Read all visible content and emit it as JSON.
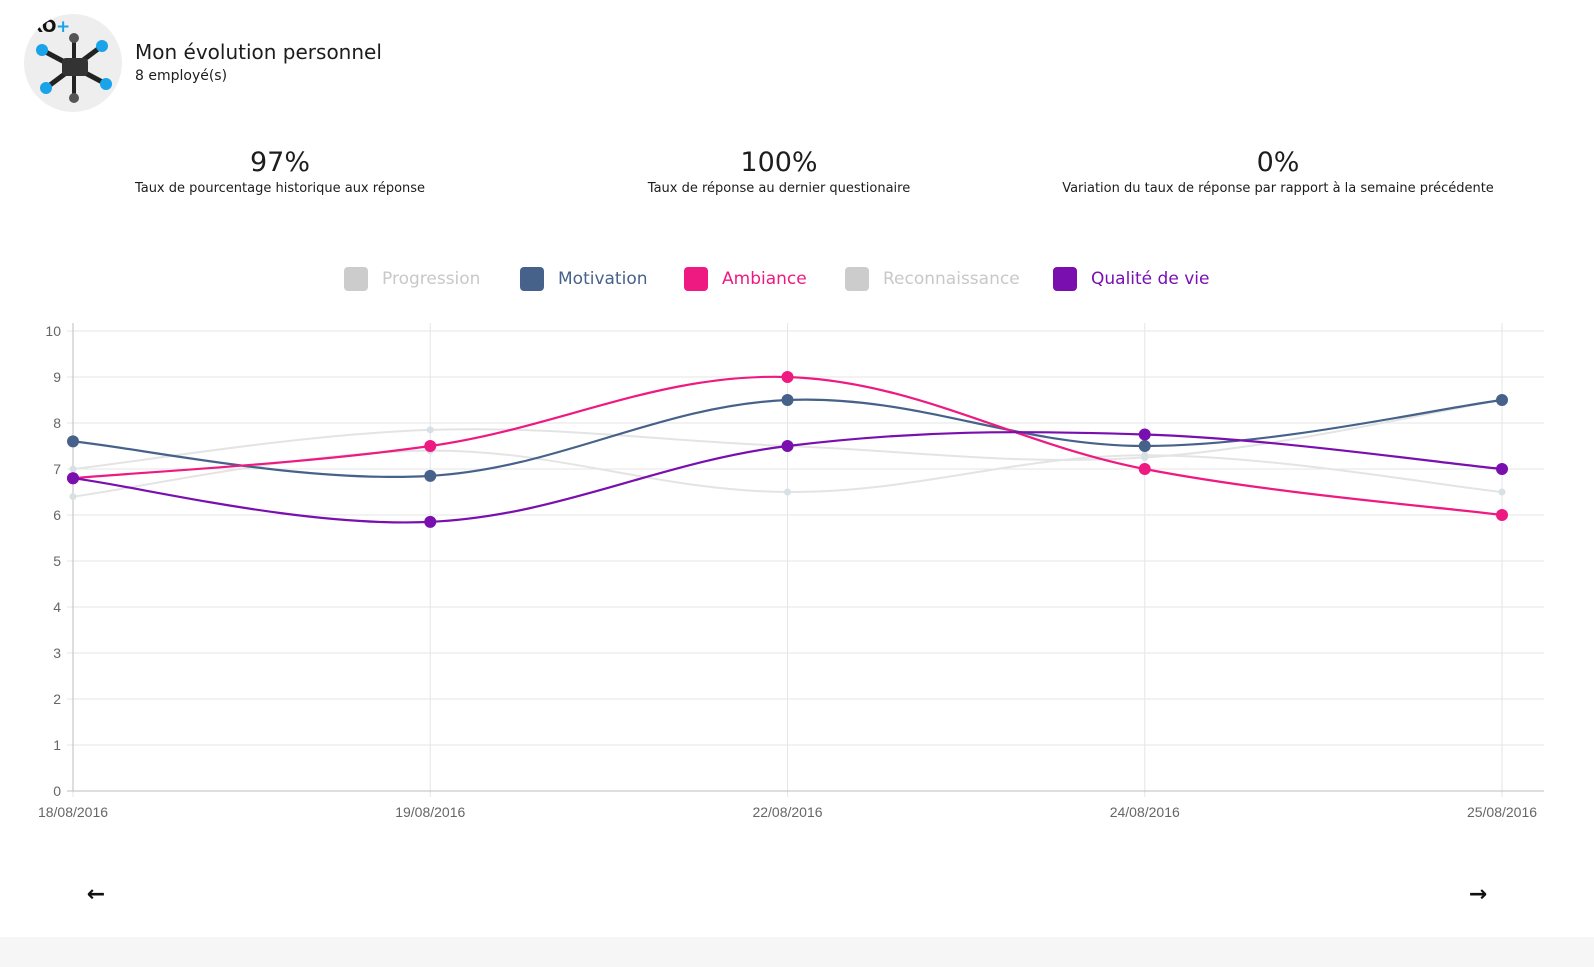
{
  "header": {
    "brand": "XO",
    "brand_plus": "+",
    "avatar_icon": "drone-icon",
    "title": "Mon évolution personnel",
    "subtitle": "8 employé(s)"
  },
  "stats": [
    {
      "value": "97%",
      "label": "Taux de pourcentage historique aux réponse"
    },
    {
      "value": "100%",
      "label": "Taux de réponse au dernier questionaire"
    },
    {
      "value": "0%",
      "label": "Variation du taux de réponse par rapport à la semaine précédente"
    }
  ],
  "navigation": {
    "prev_icon": "arrow-left-icon",
    "prev_glyph": "←",
    "next_icon": "arrow-right-icon",
    "next_glyph": "→"
  },
  "chart_data": {
    "type": "line",
    "title": "",
    "xlabel": "",
    "ylabel": "",
    "ylim": [
      0,
      10
    ],
    "yticks": [
      0,
      1,
      2,
      3,
      4,
      5,
      6,
      7,
      8,
      9,
      10
    ],
    "grid": true,
    "legend_placement": "top-center",
    "categories": [
      "18/08/2016",
      "19/08/2016",
      "22/08/2016",
      "24/08/2016",
      "25/08/2016"
    ],
    "series": [
      {
        "name": "Progression",
        "color": "#cccccc",
        "hidden": true,
        "values": [
          7.0,
          7.85,
          7.5,
          7.25,
          8.5
        ]
      },
      {
        "name": "Motivation",
        "color": "#47628a",
        "hidden": false,
        "values": [
          7.6,
          6.85,
          8.5,
          7.5,
          8.5
        ]
      },
      {
        "name": "Ambiance",
        "color": "#ee1a82",
        "hidden": false,
        "values": [
          6.8,
          7.5,
          9.0,
          7.0,
          6.0
        ]
      },
      {
        "name": "Reconnaissance",
        "color": "#cccccc",
        "hidden": true,
        "values": [
          6.4,
          7.4,
          6.5,
          7.3,
          6.5
        ]
      },
      {
        "name": "Qualité de vie",
        "color": "#7a0fb0",
        "hidden": false,
        "values": [
          6.8,
          5.85,
          7.5,
          7.75,
          7.0
        ]
      }
    ]
  }
}
